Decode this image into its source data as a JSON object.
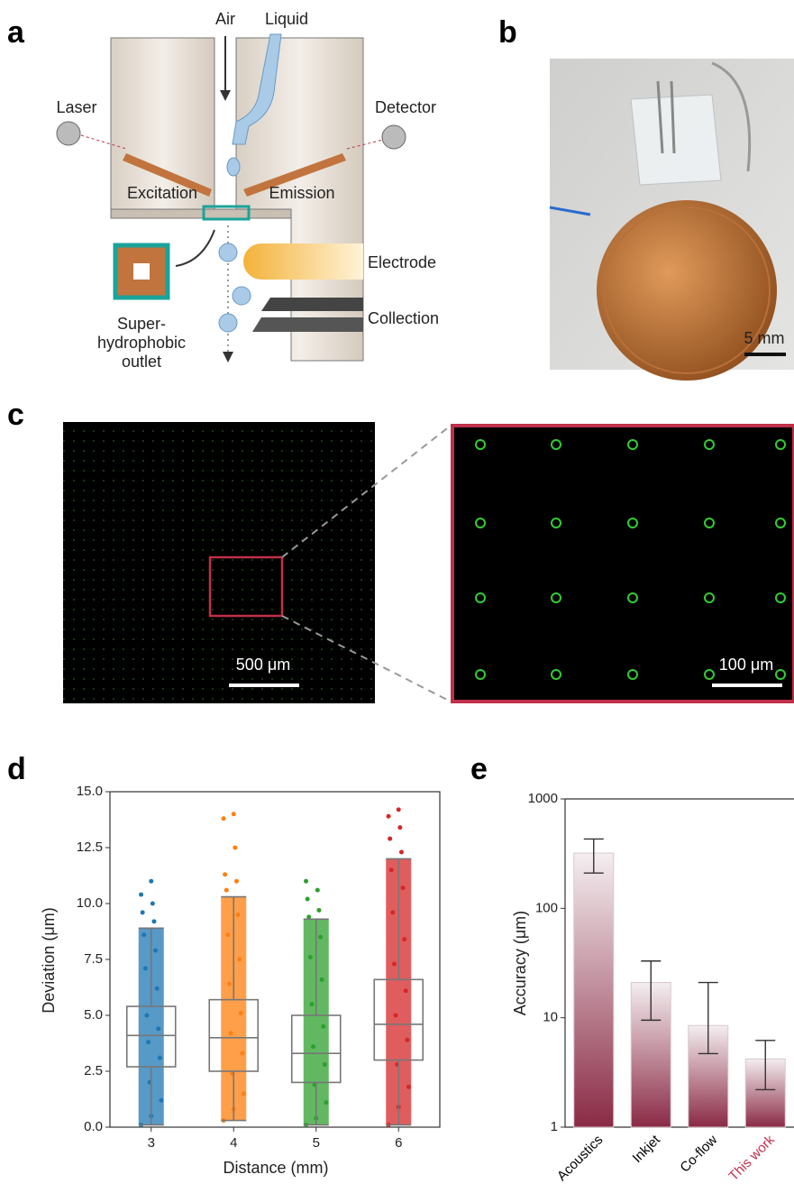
{
  "panel_labels": [
    "a",
    "b",
    "c",
    "d",
    "e"
  ],
  "diagram": {
    "air": "Air",
    "liquid": "Liquid",
    "laser": "Laser",
    "detector": "Detector",
    "excitation": "Excitation",
    "emission": "Emission",
    "electrode": "Electrode",
    "collection": "Collection",
    "outlet": [
      "Super-",
      "hydrophobic",
      "outlet"
    ]
  },
  "photo": {
    "scale_bar": "5 mm"
  },
  "micrograph": {
    "overview_scale_bar": "500 μm",
    "zoom_scale_bar": "100 μm"
  },
  "chart_data": [
    {
      "type": "box",
      "xlabel": "Distance (mm)",
      "ylabel": "Deviation (μm)",
      "categories": [
        "3",
        "4",
        "5",
        "6"
      ],
      "colors": [
        "#1f77b4",
        "#ff7f0e",
        "#2ca02c",
        "#d62728"
      ],
      "whisker_low": [
        0.1,
        0.3,
        0.1,
        0.1
      ],
      "q1": [
        2.7,
        2.5,
        2.0,
        3.0
      ],
      "median": [
        4.1,
        4.0,
        3.3,
        4.6
      ],
      "q3": [
        5.4,
        5.7,
        5.0,
        6.6
      ],
      "whisker_high": [
        8.9,
        10.3,
        9.3,
        12.0
      ],
      "points": [
        [
          0.1,
          0.5,
          1.2,
          2.0,
          3.1,
          3.8,
          4.4,
          5.0,
          6.2,
          7.1,
          7.9,
          8.6,
          9.2,
          9.6,
          10.0,
          10.4,
          11.0
        ],
        [
          0.3,
          0.8,
          1.5,
          2.4,
          3.3,
          4.2,
          5.1,
          6.4,
          7.5,
          8.6,
          9.5,
          10.6,
          11.0,
          11.3,
          12.5,
          13.8,
          14.0
        ],
        [
          0.1,
          0.4,
          1.1,
          1.9,
          2.8,
          3.6,
          4.5,
          5.5,
          6.6,
          7.6,
          8.5,
          9.4,
          9.7,
          10.2,
          10.6,
          11.0
        ],
        [
          0.1,
          0.9,
          1.8,
          2.8,
          3.9,
          5.0,
          6.1,
          7.3,
          8.4,
          9.6,
          10.7,
          11.5,
          12.3,
          12.9,
          13.4,
          13.9,
          14.2
        ]
      ],
      "ylim": [
        0,
        15
      ],
      "yticks": [
        {
          "value": 0,
          "label": "0.0"
        },
        {
          "value": 2.5,
          "label": "2.5"
        },
        {
          "value": 5,
          "label": "5.0"
        },
        {
          "value": 7.5,
          "label": "7.5"
        },
        {
          "value": 10,
          "label": "10.0"
        },
        {
          "value": 12.5,
          "label": "12.5"
        },
        {
          "value": 15,
          "label": "15.0"
        }
      ]
    },
    {
      "type": "bar",
      "ylabel": "Accuracy (μm)",
      "categories": [
        "Acoustics",
        "Inkjet",
        "Co-flow",
        "This work"
      ],
      "label_colors": [
        "#000000",
        "#000000",
        "#000000",
        "#c0304a"
      ],
      "values": [
        320,
        21,
        8.5,
        4.2
      ],
      "error_low": [
        210,
        9.5,
        4.7,
        2.2
      ],
      "error_high": [
        430,
        33,
        21,
        6.2
      ],
      "log_scale": true,
      "ylim": [
        1,
        1000
      ],
      "yticks": [
        1,
        10,
        100,
        1000
      ]
    }
  ]
}
